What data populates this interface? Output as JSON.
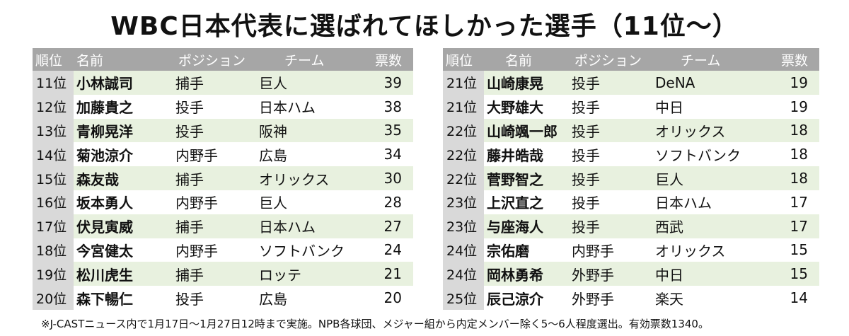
{
  "title": "WBC日本代表に選ばれてほしかった選手（11位～）",
  "headers": {
    "rank": "順位",
    "name": "名前",
    "position": "ポジション",
    "team": "チーム",
    "votes": "票数"
  },
  "left_rows": [
    {
      "rank": "11位",
      "name": "小林誠司",
      "position": "捕手",
      "team": "巨人",
      "votes": "39"
    },
    {
      "rank": "12位",
      "name": "加藤貴之",
      "position": "投手",
      "team": "日本ハム",
      "votes": "38"
    },
    {
      "rank": "13位",
      "name": "青柳晃洋",
      "position": "投手",
      "team": "阪神",
      "votes": "35"
    },
    {
      "rank": "14位",
      "name": "菊池涼介",
      "position": "内野手",
      "team": "広島",
      "votes": "34"
    },
    {
      "rank": "15位",
      "name": "森友哉",
      "position": "捕手",
      "team": "オリックス",
      "votes": "30"
    },
    {
      "rank": "16位",
      "name": "坂本勇人",
      "position": "内野手",
      "team": "巨人",
      "votes": "28"
    },
    {
      "rank": "17位",
      "name": "伏見寅威",
      "position": "捕手",
      "team": "日本ハム",
      "votes": "27"
    },
    {
      "rank": "18位",
      "name": "今宮健太",
      "position": "内野手",
      "team": "ソフトバンク",
      "votes": "24"
    },
    {
      "rank": "19位",
      "name": "松川虎生",
      "position": "捕手",
      "team": "ロッテ",
      "votes": "21"
    },
    {
      "rank": "20位",
      "name": "森下暢仁",
      "position": "投手",
      "team": "広島",
      "votes": "20"
    }
  ],
  "right_rows": [
    {
      "rank": "21位",
      "name": "山崎康晃",
      "position": "投手",
      "team": "DeNA",
      "votes": "19"
    },
    {
      "rank": "21位",
      "name": "大野雄大",
      "position": "投手",
      "team": "中日",
      "votes": "19"
    },
    {
      "rank": "22位",
      "name": "山崎颯一郎",
      "position": "投手",
      "team": "オリックス",
      "votes": "18"
    },
    {
      "rank": "22位",
      "name": "藤井皓哉",
      "position": "投手",
      "team": "ソフトバンク",
      "votes": "18"
    },
    {
      "rank": "22位",
      "name": "菅野智之",
      "position": "投手",
      "team": "巨人",
      "votes": "18"
    },
    {
      "rank": "23位",
      "name": "上沢直之",
      "position": "投手",
      "team": "日本ハム",
      "votes": "17"
    },
    {
      "rank": "23位",
      "name": "与座海人",
      "position": "投手",
      "team": "西武",
      "votes": "17"
    },
    {
      "rank": "24位",
      "name": "宗佑磨",
      "position": "内野手",
      "team": "オリックス",
      "votes": "15"
    },
    {
      "rank": "24位",
      "name": "岡林勇希",
      "position": "外野手",
      "team": "中日",
      "votes": "15"
    },
    {
      "rank": "25位",
      "name": "辰己涼介",
      "position": "外野手",
      "team": "楽天",
      "votes": "14"
    }
  ],
  "note": "※J-CASTニュース内で1月17日～1月27日12時まで実施。NPB各球団、メジャー組から内定メンバー除く5～6人程度選出。有効票数1340。"
}
